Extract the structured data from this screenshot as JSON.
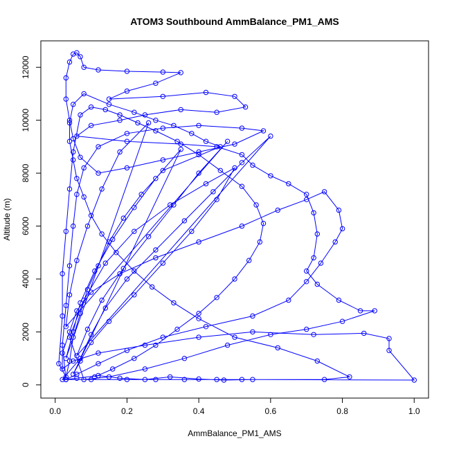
{
  "chart_data": {
    "type": "scatter",
    "title": "ATOM3 Southbound AmmBalance_PM1_AMS",
    "xlabel": "AmmBalance_PM1_AMS",
    "ylabel": "Altitude (m)",
    "xlim": [
      -0.04,
      1.04
    ],
    "ylim": [
      -500,
      13000
    ],
    "x_ticks": [
      0.0,
      0.2,
      0.4,
      0.6,
      0.8,
      1.0
    ],
    "x_tick_labels": [
      "0.0",
      "0.2",
      "0.4",
      "0.6",
      "0.8",
      "1.0"
    ],
    "y_ticks": [
      0,
      2000,
      4000,
      6000,
      8000,
      10000,
      12000
    ],
    "y_tick_labels": [
      "0",
      "2000",
      "4000",
      "6000",
      "8000",
      "10000",
      "12000"
    ],
    "grid": false,
    "series": [
      {
        "color": "#0000ff",
        "marker": "open-circle",
        "line": true,
        "points": [
          [
            0.03,
            200
          ],
          [
            0.06,
            250
          ],
          [
            0.12,
            350
          ],
          [
            0.18,
            250
          ],
          [
            0.25,
            200
          ],
          [
            0.32,
            300
          ],
          [
            0.4,
            220
          ],
          [
            0.47,
            180
          ],
          [
            0.55,
            200
          ],
          [
            1.0,
            180
          ],
          [
            0.93,
            1300
          ],
          [
            0.93,
            1750
          ],
          [
            0.86,
            1950
          ],
          [
            0.72,
            1900
          ],
          [
            0.55,
            2000
          ],
          [
            0.4,
            1800
          ],
          [
            0.25,
            1500
          ],
          [
            0.12,
            1200
          ],
          [
            0.05,
            900
          ],
          [
            0.02,
            600
          ],
          [
            0.02,
            1200
          ],
          [
            0.04,
            2000
          ],
          [
            0.06,
            2800
          ],
          [
            0.1,
            3500
          ],
          [
            0.18,
            4200
          ],
          [
            0.28,
            4800
          ],
          [
            0.4,
            5400
          ],
          [
            0.52,
            6000
          ],
          [
            0.62,
            6600
          ],
          [
            0.7,
            7000
          ],
          [
            0.75,
            7300
          ],
          [
            0.79,
            6600
          ],
          [
            0.8,
            5900
          ],
          [
            0.78,
            5400
          ],
          [
            0.74,
            4600
          ],
          [
            0.7,
            3900
          ],
          [
            0.65,
            3200
          ],
          [
            0.55,
            2600
          ],
          [
            0.42,
            2200
          ],
          [
            0.3,
            1800
          ],
          [
            0.2,
            1300
          ],
          [
            0.12,
            800
          ],
          [
            0.06,
            400
          ],
          [
            0.03,
            200
          ],
          [
            0.02,
            1500
          ],
          [
            0.03,
            3000
          ],
          [
            0.04,
            4500
          ],
          [
            0.05,
            6000
          ],
          [
            0.06,
            7200
          ],
          [
            0.08,
            8200
          ],
          [
            0.12,
            9000
          ],
          [
            0.2,
            9500
          ],
          [
            0.3,
            9700
          ],
          [
            0.4,
            9800
          ],
          [
            0.52,
            9700
          ],
          [
            0.58,
            9600
          ],
          [
            0.5,
            9100
          ],
          [
            0.4,
            8800
          ],
          [
            0.3,
            8500
          ],
          [
            0.2,
            8200
          ],
          [
            0.12,
            8000
          ],
          [
            0.07,
            8600
          ],
          [
            0.05,
            9300
          ],
          [
            0.04,
            10000
          ],
          [
            0.03,
            10800
          ],
          [
            0.03,
            11600
          ],
          [
            0.04,
            12200
          ],
          [
            0.05,
            12500
          ],
          [
            0.06,
            12550
          ],
          [
            0.07,
            12400
          ],
          [
            0.08,
            12000
          ],
          [
            0.12,
            11900
          ],
          [
            0.2,
            11850
          ],
          [
            0.3,
            11820
          ],
          [
            0.35,
            11800
          ],
          [
            0.28,
            11400
          ],
          [
            0.2,
            11100
          ],
          [
            0.15,
            10800
          ],
          [
            0.3,
            10900
          ],
          [
            0.42,
            11050
          ],
          [
            0.5,
            10900
          ],
          [
            0.53,
            10500
          ],
          [
            0.45,
            10300
          ],
          [
            0.35,
            10400
          ],
          [
            0.25,
            10200
          ],
          [
            0.18,
            10000
          ],
          [
            0.1,
            9800
          ],
          [
            0.06,
            9400
          ],
          [
            0.2,
            9200
          ],
          [
            0.35,
            9100
          ],
          [
            0.45,
            9000
          ],
          [
            0.52,
            8700
          ],
          [
            0.55,
            8300
          ],
          [
            0.6,
            7900
          ],
          [
            0.65,
            7600
          ],
          [
            0.7,
            7200
          ],
          [
            0.72,
            6500
          ],
          [
            0.73,
            5700
          ],
          [
            0.72,
            4800
          ],
          [
            0.7,
            4300
          ],
          [
            0.73,
            3800
          ],
          [
            0.79,
            3200
          ],
          [
            0.85,
            2800
          ],
          [
            0.89,
            2800
          ],
          [
            0.8,
            2400
          ],
          [
            0.7,
            2100
          ],
          [
            0.6,
            1900
          ],
          [
            0.48,
            1500
          ],
          [
            0.36,
            1000
          ],
          [
            0.25,
            600
          ],
          [
            0.15,
            300
          ],
          [
            0.08,
            200
          ],
          [
            0.04,
            1800
          ],
          [
            0.08,
            3200
          ],
          [
            0.14,
            4600
          ],
          [
            0.22,
            5800
          ],
          [
            0.32,
            6800
          ],
          [
            0.42,
            7600
          ],
          [
            0.5,
            8200
          ],
          [
            0.45,
            7000
          ],
          [
            0.38,
            5800
          ],
          [
            0.3,
            4600
          ],
          [
            0.22,
            3400
          ],
          [
            0.15,
            2400
          ],
          [
            0.1,
            1600
          ],
          [
            0.07,
            900
          ],
          [
            0.05,
            400
          ],
          [
            0.35,
            8900
          ],
          [
            0.28,
            7800
          ],
          [
            0.22,
            6700
          ],
          [
            0.16,
            5500
          ],
          [
            0.11,
            4300
          ],
          [
            0.07,
            3100
          ],
          [
            0.05,
            2000
          ],
          [
            0.03,
            1000
          ],
          [
            0.26,
            9900
          ],
          [
            0.18,
            8800
          ],
          [
            0.13,
            7400
          ],
          [
            0.09,
            6000
          ],
          [
            0.06,
            4700
          ],
          [
            0.04,
            3400
          ],
          [
            0.03,
            2200
          ],
          [
            0.48,
            9200
          ],
          [
            0.4,
            8000
          ],
          [
            0.33,
            6800
          ],
          [
            0.26,
            5600
          ],
          [
            0.19,
            4400
          ],
          [
            0.13,
            3200
          ],
          [
            0.09,
            2100
          ],
          [
            0.06,
            1100
          ],
          [
            0.6,
            9400
          ],
          [
            0.52,
            8400
          ],
          [
            0.44,
            7300
          ],
          [
            0.36,
            6200
          ],
          [
            0.28,
            5100
          ],
          [
            0.2,
            4000
          ],
          [
            0.14,
            2900
          ],
          [
            0.1,
            1900
          ],
          [
            0.07,
            1000
          ],
          [
            0.02,
            200
          ],
          [
            0.1,
            200
          ],
          [
            0.2,
            200
          ],
          [
            0.28,
            200
          ],
          [
            0.36,
            200
          ],
          [
            0.45,
            200
          ],
          [
            0.52,
            200
          ],
          [
            0.75,
            200
          ],
          [
            0.82,
            300
          ],
          [
            0.73,
            900
          ],
          [
            0.62,
            1400
          ],
          [
            0.5,
            1800
          ],
          [
            0.4,
            2500
          ],
          [
            0.33,
            3100
          ],
          [
            0.27,
            3700
          ],
          [
            0.22,
            4300
          ],
          [
            0.17,
            5000
          ],
          [
            0.13,
            5700
          ],
          [
            0.1,
            6400
          ],
          [
            0.08,
            7100
          ],
          [
            0.06,
            7800
          ],
          [
            0.05,
            8500
          ],
          [
            0.04,
            9200
          ],
          [
            0.04,
            9900
          ],
          [
            0.05,
            10600
          ],
          [
            0.08,
            11000
          ],
          [
            0.15,
            10600
          ],
          [
            0.22,
            10300
          ],
          [
            0.28,
            10000
          ],
          [
            0.33,
            9800
          ],
          [
            0.38,
            9500
          ],
          [
            0.42,
            9200
          ],
          [
            0.46,
            9000
          ],
          [
            0.3,
            8100
          ],
          [
            0.24,
            7200
          ],
          [
            0.19,
            6300
          ],
          [
            0.15,
            5400
          ],
          [
            0.12,
            4500
          ],
          [
            0.09,
            3600
          ],
          [
            0.07,
            2700
          ],
          [
            0.05,
            1800
          ],
          [
            0.04,
            900
          ],
          [
            0.03,
            300
          ],
          [
            0.01,
            800
          ],
          [
            0.02,
            2600
          ],
          [
            0.02,
            4200
          ],
          [
            0.03,
            5800
          ],
          [
            0.04,
            7400
          ],
          [
            0.05,
            8800
          ],
          [
            0.07,
            10200
          ],
          [
            0.1,
            10500
          ],
          [
            0.14,
            10400
          ],
          [
            0.18,
            10200
          ],
          [
            0.23,
            9900
          ],
          [
            0.28,
            9600
          ],
          [
            0.34,
            9200
          ],
          [
            0.4,
            8700
          ],
          [
            0.46,
            8100
          ],
          [
            0.52,
            7500
          ],
          [
            0.56,
            6800
          ],
          [
            0.58,
            6100
          ],
          [
            0.57,
            5400
          ],
          [
            0.54,
            4700
          ],
          [
            0.5,
            4000
          ],
          [
            0.45,
            3300
          ],
          [
            0.4,
            2700
          ],
          [
            0.34,
            2100
          ],
          [
            0.28,
            1500
          ],
          [
            0.22,
            1000
          ],
          [
            0.16,
            600
          ],
          [
            0.11,
            300
          ]
        ]
      }
    ]
  }
}
